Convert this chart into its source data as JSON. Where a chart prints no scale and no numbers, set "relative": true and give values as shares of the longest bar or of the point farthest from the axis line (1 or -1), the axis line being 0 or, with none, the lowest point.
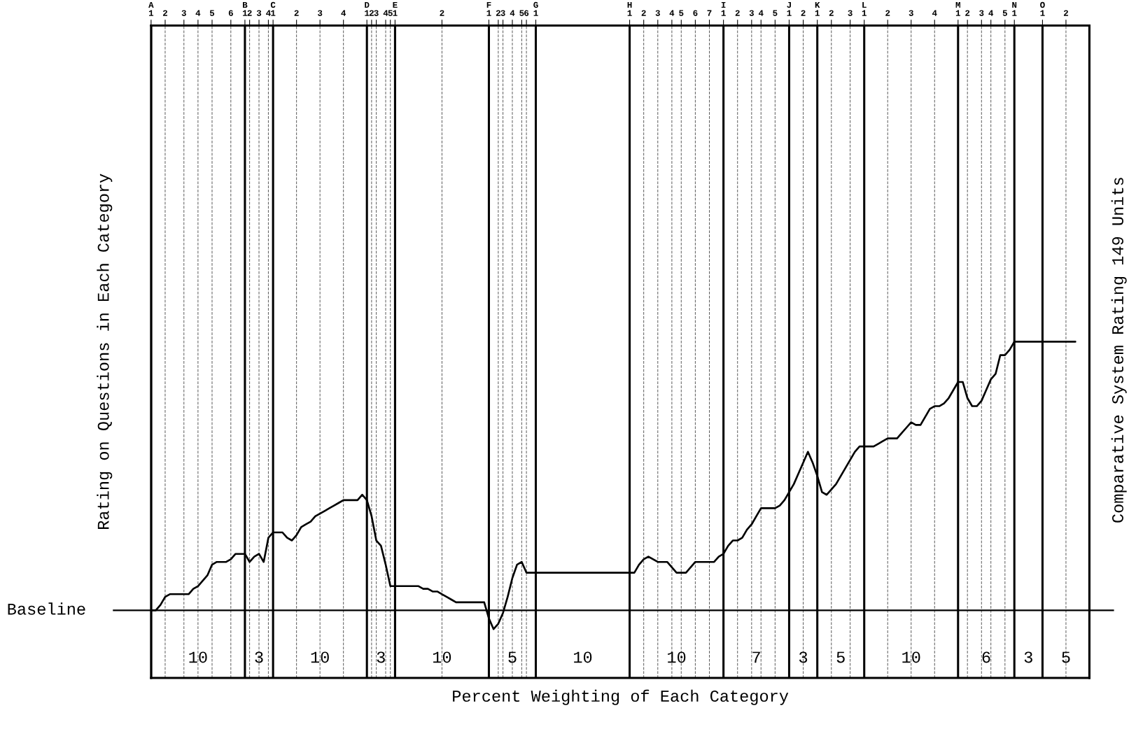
{
  "chart_data": {
    "type": "line",
    "relative": true,
    "xlabel": "Percent Weighting of Each Category",
    "ylabel": "Rating on Questions in Each Category",
    "y2label": "Comparative System Rating 149 Units",
    "categories": [
      "A\n1",
      null,
      null,
      "2",
      null,
      null,
      null,
      "3",
      null,
      null,
      "4",
      null,
      null,
      "5",
      null,
      null,
      null,
      "6",
      null,
      null,
      "B\n1",
      "2",
      null,
      "3",
      null,
      "4",
      "C\n1",
      null,
      null,
      null,
      null,
      "2",
      null,
      null,
      null,
      null,
      "3",
      null,
      null,
      null,
      null,
      "4",
      null,
      null,
      null,
      null,
      "D\n1",
      "2",
      "3",
      null,
      "4",
      "5",
      "E\n1",
      null,
      null,
      null,
      null,
      null,
      null,
      null,
      null,
      null,
      "2",
      null,
      null,
      null,
      null,
      null,
      null,
      null,
      null,
      null,
      "F\n1",
      null,
      "2",
      "3",
      null,
      "4",
      null,
      "5",
      "6",
      null,
      "G\n1",
      null,
      null,
      null,
      null,
      null,
      null,
      null,
      null,
      null,
      null,
      null,
      null,
      null,
      null,
      null,
      null,
      null,
      null,
      null,
      "H\n1",
      null,
      null,
      "2",
      null,
      null,
      "3",
      null,
      null,
      "4",
      null,
      "5",
      null,
      null,
      "6",
      null,
      null,
      "7",
      null,
      null,
      "I\n1",
      null,
      null,
      "2",
      null,
      null,
      "3",
      null,
      "4",
      null,
      null,
      "5",
      null,
      null,
      "J\n1",
      null,
      null,
      "2",
      null,
      null,
      "K\n1",
      null,
      null,
      "2",
      null,
      null,
      null,
      "3",
      null,
      null,
      "L\n1",
      null,
      null,
      null,
      null,
      "2",
      null,
      null,
      null,
      null,
      "3",
      null,
      null,
      null,
      null,
      "4",
      null,
      null,
      null,
      null,
      "M\n1",
      null,
      "2",
      null,
      null,
      "3",
      null,
      "4",
      null,
      null,
      "5",
      null,
      "N\n1",
      null,
      null,
      null,
      null,
      null,
      "O\n1",
      null,
      null,
      null,
      null,
      "2",
      null,
      null,
      null,
      null,
      null
    ],
    "annotations": [
      "Baseline",
      "10",
      "3",
      "10",
      "3",
      "10",
      "5",
      "10",
      "10",
      "7",
      "3",
      "5",
      "10",
      "6",
      "3",
      "5"
    ],
    "grid": "x",
    "marker": "none",
    "line_style": "solid",
    "series": [
      {
        "color": "#000000",
        "values": [
          0,
          0,
          0.02,
          0.05,
          0.06,
          0.06,
          0.06,
          0.06,
          0.06,
          0.08,
          0.09,
          0.11,
          0.13,
          0.17,
          0.18,
          0.18,
          0.18,
          0.19,
          0.21,
          0.21,
          0.21,
          0.18,
          0.2,
          0.21,
          0.18,
          0.27,
          0.29,
          0.29,
          0.29,
          0.27,
          0.26,
          0.28,
          0.31,
          0.32,
          0.33,
          0.35,
          0.36,
          0.37,
          0.38,
          0.39,
          0.4,
          0.41,
          0.41,
          0.41,
          0.41,
          0.43,
          0.41,
          0.35,
          0.26,
          0.24,
          0.17,
          0.09,
          0.09,
          0.09,
          0.09,
          0.09,
          0.09,
          0.09,
          0.08,
          0.08,
          0.07,
          0.07,
          0.06,
          0.05,
          0.04,
          0.03,
          0.03,
          0.03,
          0.03,
          0.03,
          0.03,
          0.03,
          -0.03,
          -0.07,
          -0.05,
          -0.01,
          0.05,
          0.12,
          0.17,
          0.18,
          0.14,
          0.14,
          0.14,
          0.14,
          0.14,
          0.14,
          0.14,
          0.14,
          0.14,
          0.14,
          0.14,
          0.14,
          0.14,
          0.14,
          0.14,
          0.14,
          0.14,
          0.14,
          0.14,
          0.14,
          0.14,
          0.14,
          0.14,
          0.14,
          0.17,
          0.19,
          0.2,
          0.19,
          0.18,
          0.18,
          0.18,
          0.16,
          0.14,
          0.14,
          0.14,
          0.16,
          0.18,
          0.18,
          0.18,
          0.18,
          0.18,
          0.2,
          0.21,
          0.24,
          0.26,
          0.26,
          0.27,
          0.3,
          0.32,
          0.35,
          0.38,
          0.38,
          0.38,
          0.38,
          0.39,
          0.41,
          0.44,
          0.47,
          0.51,
          0.55,
          0.59,
          0.55,
          0.5,
          0.44,
          0.43,
          0.45,
          0.47,
          0.5,
          0.53,
          0.56,
          0.59,
          0.61,
          0.61,
          0.61,
          0.61,
          0.62,
          0.63,
          0.64,
          0.64,
          0.64,
          0.66,
          0.68,
          0.7,
          0.69,
          0.69,
          0.72,
          0.75,
          0.76,
          0.76,
          0.77,
          0.79,
          0.82,
          0.85,
          0.85,
          0.79,
          0.76,
          0.76,
          0.78,
          0.82,
          0.86,
          0.88,
          0.95,
          0.95,
          0.97,
          1,
          1,
          1,
          1,
          1,
          1,
          1,
          1,
          1,
          1,
          1,
          1,
          1,
          1,
          null,
          null,
          null
        ]
      }
    ]
  }
}
